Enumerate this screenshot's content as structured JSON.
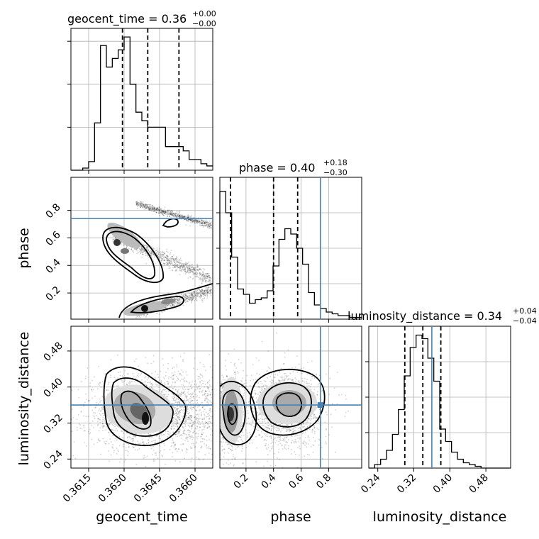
{
  "chart_data": {
    "type": "corner",
    "parameters": [
      "geocent_time",
      "phase",
      "luminosity_distance"
    ],
    "truth_color": "#4682b4",
    "truths": {
      "geocent_time": null,
      "phase": 0.74,
      "luminosity_distance": 0.36
    },
    "titles": [
      {
        "param": "geocent_time",
        "text": "geocent_time = 0.36",
        "sup": "+0.00",
        "sub": "−0.00"
      },
      {
        "param": "phase",
        "text": "phase = 0.40",
        "sup": "+0.18",
        "sub": "−0.30"
      },
      {
        "param": "luminosity_distance",
        "text": "luminosity_distance = 0.34",
        "sup": "+0.04",
        "sub": "−0.04"
      }
    ],
    "axes": {
      "geocent_time": {
        "range": [
          0.36075,
          0.36675
        ],
        "ticks": [
          0.3615,
          0.363,
          0.3645,
          0.366
        ],
        "tick_labels": [
          "0.3615",
          "0.3630",
          "0.3645",
          "0.3660"
        ],
        "label": "geocent_time"
      },
      "phase": {
        "range": [
          0.01,
          1.04
        ],
        "ticks": [
          0.2,
          0.4,
          0.6,
          0.8
        ],
        "tick_labels": [
          "0.2",
          "0.4",
          "0.6",
          "0.8"
        ],
        "label": "phase"
      },
      "luminosity_distance": {
        "range": [
          0.22,
          0.535
        ],
        "ticks": [
          0.24,
          0.32,
          0.4,
          0.48
        ],
        "tick_labels": [
          "0.24",
          "0.32",
          "0.40",
          "0.48"
        ],
        "label": "luminosity_distance"
      }
    },
    "histograms": {
      "geocent_time": {
        "edges_range": [
          0.36075,
          0.36675
        ],
        "bins": 24,
        "counts": [
          0,
          0,
          1,
          4,
          22,
          58,
          48,
          52,
          56,
          62,
          40,
          27,
          23,
          20,
          20,
          20,
          11,
          11,
          11,
          9,
          5,
          5,
          3,
          2
        ],
        "ymax": 66,
        "quantiles": [
          0.36293,
          0.364,
          0.36532
        ]
      },
      "phase": {
        "edges_range": [
          0.01,
          1.04
        ],
        "bins": 24,
        "counts": [
          72,
          60,
          35,
          17,
          14,
          9,
          11,
          12,
          16,
          30,
          45,
          51,
          48,
          40,
          31,
          15,
          8,
          6,
          4,
          3,
          2,
          2,
          1,
          1
        ],
        "ymax": 80,
        "quantiles": [
          0.087,
          0.4,
          0.575
        ]
      },
      "luminosity_distance": {
        "edges_range": [
          0.22,
          0.535
        ],
        "bins": 24,
        "counts": [
          0,
          2,
          5,
          10,
          19,
          33,
          52,
          68,
          75,
          73,
          62,
          49,
          22,
          15,
          9,
          5,
          3,
          2,
          1,
          0,
          0,
          0,
          0,
          0
        ],
        "ymax": 80,
        "quantiles": [
          0.3,
          0.34,
          0.38
        ]
      }
    },
    "ticks_y_hist": [
      20,
      40,
      60
    ]
  }
}
